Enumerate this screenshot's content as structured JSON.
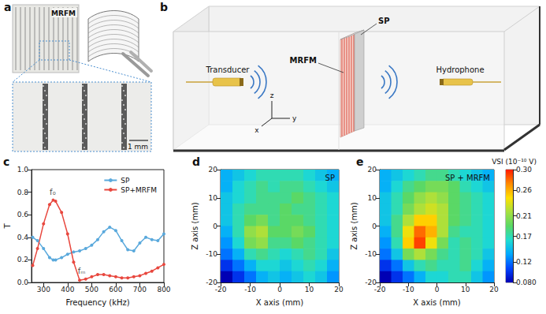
{
  "panel_a": {
    "label": "a",
    "photo_text": "MRFM",
    "scale_bar": "1 mm"
  },
  "panel_b": {
    "label": "b",
    "sp": "SP",
    "mrfm": "MRFM",
    "transducer": "Transducer",
    "hydrophone": "Hydrophone",
    "axes": {
      "x": "x",
      "y": "y",
      "z": "z"
    }
  },
  "chart_data": [
    {
      "panel": "c",
      "type": "line",
      "x_label": "Frequency (kHz)",
      "y_label": "T",
      "x": [
        255,
        275,
        300,
        325,
        340,
        350,
        375,
        400,
        425,
        450,
        475,
        500,
        525,
        550,
        575,
        600,
        625,
        650,
        675,
        700,
        725,
        750,
        775,
        800
      ],
      "series": [
        {
          "name": "SP",
          "color": "#5aa9dc",
          "marker": "circle",
          "values": [
            0.4,
            0.37,
            0.3,
            0.22,
            0.2,
            0.2,
            0.22,
            0.25,
            0.27,
            0.28,
            0.3,
            0.33,
            0.38,
            0.45,
            0.49,
            0.46,
            0.37,
            0.29,
            0.28,
            0.35,
            0.4,
            0.38,
            0.37,
            0.43
          ]
        },
        {
          "name": "SP+MRFM",
          "color": "#e8473e",
          "marker": "circle",
          "values": [
            0.15,
            0.3,
            0.52,
            0.69,
            0.73,
            0.72,
            0.62,
            0.43,
            0.18,
            0.02,
            0.03,
            0.05,
            0.07,
            0.07,
            0.06,
            0.05,
            0.04,
            0.04,
            0.05,
            0.06,
            0.08,
            0.1,
            0.13,
            0.16
          ]
        }
      ],
      "annotations": [
        {
          "text": "f₀",
          "x": 338,
          "y": 0.8
        },
        {
          "text": "fₘ",
          "x": 458,
          "y": 0.1
        }
      ],
      "xlim": [
        250,
        800
      ],
      "xticks": [
        300,
        400,
        500,
        600,
        700,
        800
      ],
      "ylim": [
        0,
        1
      ],
      "yticks": [
        {
          "value": 0,
          "label": "0.0"
        },
        0.2,
        0.4,
        0.6,
        0.8,
        {
          "value": 1,
          "label": "1.0"
        }
      ],
      "legend": "upper right",
      "grid": false
    },
    {
      "panel": "d",
      "type": "heatmap",
      "title": "SP",
      "x_label": "X axis (mm)",
      "y_label": "Z axis (mm)",
      "x": [
        -18,
        -14,
        -10,
        -6,
        -2,
        2,
        6,
        10,
        14,
        18
      ],
      "y": [
        18,
        14,
        10,
        6,
        2,
        -2,
        -6,
        -10,
        -14,
        -18
      ],
      "cells": [
        [
          0.14,
          0.15,
          0.16,
          0.17,
          0.17,
          0.17,
          0.17,
          0.16,
          0.15,
          0.14
        ],
        [
          0.14,
          0.16,
          0.17,
          0.18,
          0.17,
          0.18,
          0.18,
          0.17,
          0.16,
          0.15
        ],
        [
          0.15,
          0.16,
          0.17,
          0.18,
          0.18,
          0.18,
          0.19,
          0.18,
          0.17,
          0.16
        ],
        [
          0.15,
          0.17,
          0.18,
          0.18,
          0.18,
          0.19,
          0.18,
          0.18,
          0.17,
          0.16
        ],
        [
          0.15,
          0.17,
          0.19,
          0.2,
          0.18,
          0.19,
          0.19,
          0.18,
          0.17,
          0.16
        ],
        [
          0.14,
          0.17,
          0.21,
          0.22,
          0.19,
          0.19,
          0.2,
          0.19,
          0.17,
          0.16
        ],
        [
          0.13,
          0.16,
          0.2,
          0.21,
          0.18,
          0.18,
          0.19,
          0.18,
          0.17,
          0.16
        ],
        [
          0.12,
          0.14,
          0.17,
          0.18,
          0.17,
          0.16,
          0.17,
          0.18,
          0.17,
          0.15
        ],
        [
          0.1,
          0.12,
          0.14,
          0.16,
          0.16,
          0.15,
          0.16,
          0.17,
          0.16,
          0.14
        ],
        [
          0.08,
          0.1,
          0.12,
          0.14,
          0.15,
          0.14,
          0.15,
          0.16,
          0.15,
          0.13
        ]
      ],
      "color_range": [
        0.08,
        0.3
      ],
      "xlim": [
        -20,
        20
      ],
      "xticks": [
        -20,
        -10,
        0,
        10,
        20
      ],
      "ylim": [
        -20,
        20
      ],
      "yticks": [
        -20,
        -10,
        0,
        10,
        20
      ],
      "grid": false
    },
    {
      "panel": "e",
      "type": "heatmap",
      "title": "SP + MRFM",
      "x_label": "X axis (mm)",
      "y_label": "Z axis (mm)",
      "x": [
        -18,
        -14,
        -10,
        -6,
        -2,
        2,
        6,
        10,
        14,
        18
      ],
      "y": [
        18,
        14,
        10,
        6,
        2,
        -2,
        -6,
        -10,
        -14,
        -18
      ],
      "cells": [
        [
          0.14,
          0.15,
          0.16,
          0.17,
          0.18,
          0.18,
          0.17,
          0.16,
          0.15,
          0.14
        ],
        [
          0.14,
          0.16,
          0.18,
          0.19,
          0.2,
          0.2,
          0.19,
          0.17,
          0.16,
          0.15
        ],
        [
          0.15,
          0.17,
          0.19,
          0.21,
          0.22,
          0.21,
          0.19,
          0.18,
          0.17,
          0.16
        ],
        [
          0.15,
          0.17,
          0.2,
          0.22,
          0.23,
          0.22,
          0.19,
          0.18,
          0.17,
          0.16
        ],
        [
          0.15,
          0.18,
          0.22,
          0.25,
          0.25,
          0.22,
          0.19,
          0.18,
          0.17,
          0.16
        ],
        [
          0.14,
          0.18,
          0.24,
          0.28,
          0.26,
          0.22,
          0.18,
          0.17,
          0.17,
          0.16
        ],
        [
          0.13,
          0.17,
          0.25,
          0.29,
          0.24,
          0.2,
          0.17,
          0.18,
          0.17,
          0.16
        ],
        [
          0.12,
          0.15,
          0.2,
          0.22,
          0.2,
          0.18,
          0.17,
          0.18,
          0.17,
          0.15
        ],
        [
          0.1,
          0.12,
          0.15,
          0.17,
          0.18,
          0.17,
          0.17,
          0.18,
          0.16,
          0.14
        ],
        [
          0.08,
          0.1,
          0.12,
          0.14,
          0.16,
          0.16,
          0.17,
          0.17,
          0.15,
          0.13
        ]
      ],
      "color_range": [
        0.08,
        0.3
      ],
      "colorbar": {
        "title": "VSI (10⁻¹⁰ V)",
        "ticks": [
          {
            "value": 0.08,
            "label": "0.080"
          },
          0.12,
          0.17,
          0.21,
          0.26,
          {
            "value": 0.3,
            "label": "0.30"
          }
        ]
      },
      "xlim": [
        -20,
        20
      ],
      "xticks": [
        -20,
        -10,
        0,
        10,
        20
      ],
      "ylim": [
        -20,
        20
      ],
      "yticks": [
        -20,
        -10,
        0,
        10,
        20
      ],
      "grid": false
    }
  ]
}
